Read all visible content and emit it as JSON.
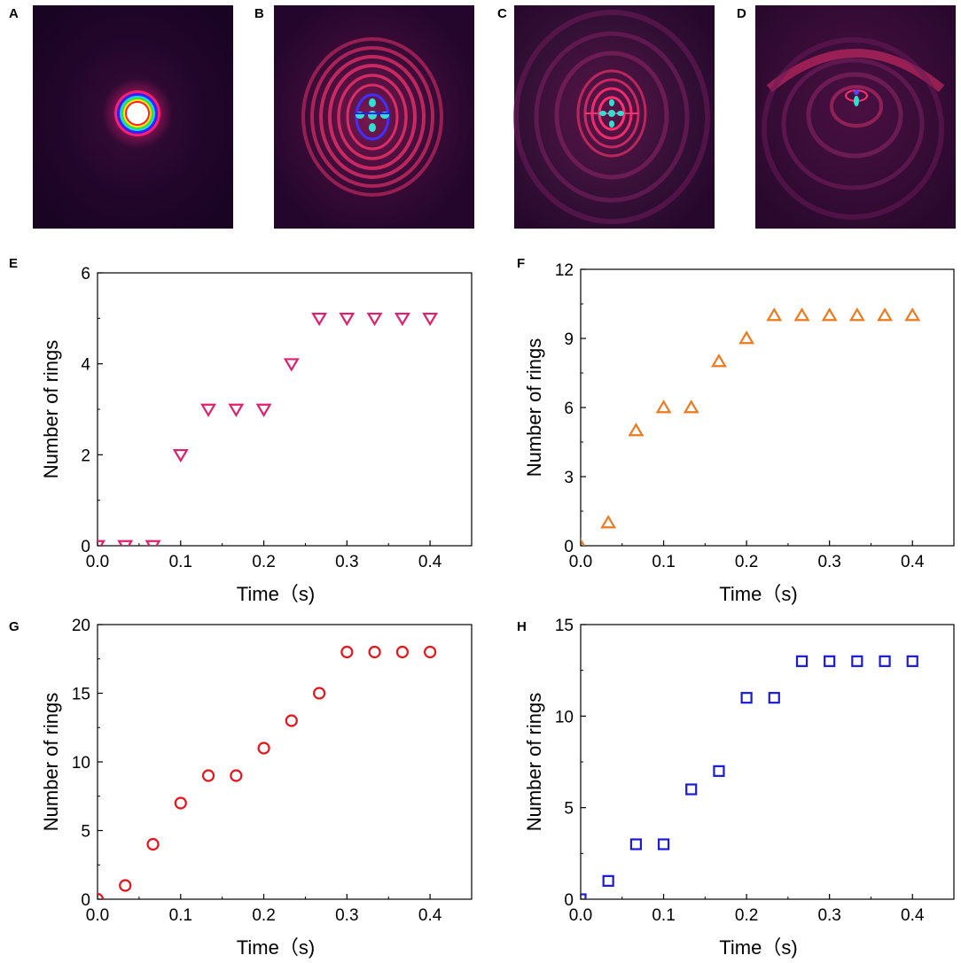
{
  "images": [
    {
      "letter": "A",
      "pattern": "bright-spot"
    },
    {
      "letter": "B",
      "pattern": "ring-interference-1"
    },
    {
      "letter": "C",
      "pattern": "ring-interference-2"
    },
    {
      "letter": "D",
      "pattern": "ring-interference-3"
    }
  ],
  "chart_data": [
    {
      "letter": "E",
      "type": "scatter",
      "marker": "triangle-down",
      "color": "#e0206e",
      "xlabel": "Time（s)",
      "ylabel": "Number of rings",
      "xlim": [
        0,
        0.45
      ],
      "ylim": [
        0,
        6
      ],
      "xticks": [
        0.0,
        0.1,
        0.2,
        0.3,
        0.4
      ],
      "xtick_labels": [
        "0.0",
        "0.1",
        "0.2",
        "0.3",
        "0.4"
      ],
      "yticks": [
        0,
        2,
        4,
        6
      ],
      "ytick_labels": [
        "0",
        "2",
        "4",
        "6"
      ],
      "x": [
        0,
        0.0333,
        0.0667,
        0.1,
        0.1333,
        0.1667,
        0.2,
        0.2333,
        0.2667,
        0.3,
        0.3333,
        0.3667,
        0.4
      ],
      "y": [
        0,
        0,
        0,
        2,
        3,
        3,
        3,
        4,
        5,
        5,
        5,
        5,
        5
      ]
    },
    {
      "letter": "F",
      "type": "scatter",
      "marker": "triangle-up",
      "color": "#ee7a1e",
      "xlabel": "Time（s)",
      "ylabel": "Number of rings",
      "xlim": [
        0,
        0.45
      ],
      "ylim": [
        0,
        12
      ],
      "xticks": [
        0.0,
        0.1,
        0.2,
        0.3,
        0.4
      ],
      "xtick_labels": [
        "0.0",
        "0.1",
        "0.2",
        "0.3",
        "0.4"
      ],
      "yticks": [
        0,
        3,
        6,
        9,
        12
      ],
      "ytick_labels": [
        "0",
        "3",
        "6",
        "9",
        "12"
      ],
      "x": [
        0,
        0.0333,
        0.0667,
        0.1,
        0.1333,
        0.1667,
        0.2,
        0.2333,
        0.2667,
        0.3,
        0.3333,
        0.3667,
        0.4
      ],
      "y": [
        0,
        1,
        5,
        6,
        6,
        8,
        9,
        10,
        10,
        10,
        10,
        10,
        10
      ]
    },
    {
      "letter": "G",
      "type": "scatter",
      "marker": "circle",
      "color": "#e8141c",
      "xlabel": "Time（s)",
      "ylabel": "Number of rings",
      "xlim": [
        0,
        0.45
      ],
      "ylim": [
        0,
        20
      ],
      "xticks": [
        0.0,
        0.1,
        0.2,
        0.3,
        0.4
      ],
      "xtick_labels": [
        "0.0",
        "0.1",
        "0.2",
        "0.3",
        "0.4"
      ],
      "yticks": [
        0,
        5,
        10,
        15,
        20
      ],
      "ytick_labels": [
        "0",
        "5",
        "10",
        "15",
        "20"
      ],
      "x": [
        0,
        0.0333,
        0.0667,
        0.1,
        0.1333,
        0.1667,
        0.2,
        0.2333,
        0.2667,
        0.3,
        0.3333,
        0.3667,
        0.4
      ],
      "y": [
        0,
        1,
        4,
        7,
        9,
        9,
        11,
        13,
        15,
        18,
        18,
        18,
        18
      ]
    },
    {
      "letter": "H",
      "type": "scatter",
      "marker": "square",
      "color": "#1a1ad8",
      "xlabel": "Time（s)",
      "ylabel": "Number of rings",
      "xlim": [
        0,
        0.45
      ],
      "ylim": [
        0,
        15
      ],
      "xticks": [
        0.0,
        0.1,
        0.2,
        0.3,
        0.4
      ],
      "xtick_labels": [
        "0.0",
        "0.1",
        "0.2",
        "0.3",
        "0.4"
      ],
      "yticks": [
        0,
        5,
        10,
        15
      ],
      "ytick_labels": [
        "0",
        "5",
        "10",
        "15"
      ],
      "x": [
        0,
        0.0333,
        0.0667,
        0.1,
        0.1333,
        0.1667,
        0.2,
        0.2333,
        0.2667,
        0.3,
        0.3333,
        0.3667,
        0.4
      ],
      "y": [
        0,
        1,
        3,
        3,
        6,
        7,
        11,
        11,
        13,
        13,
        13,
        13,
        13
      ]
    }
  ]
}
